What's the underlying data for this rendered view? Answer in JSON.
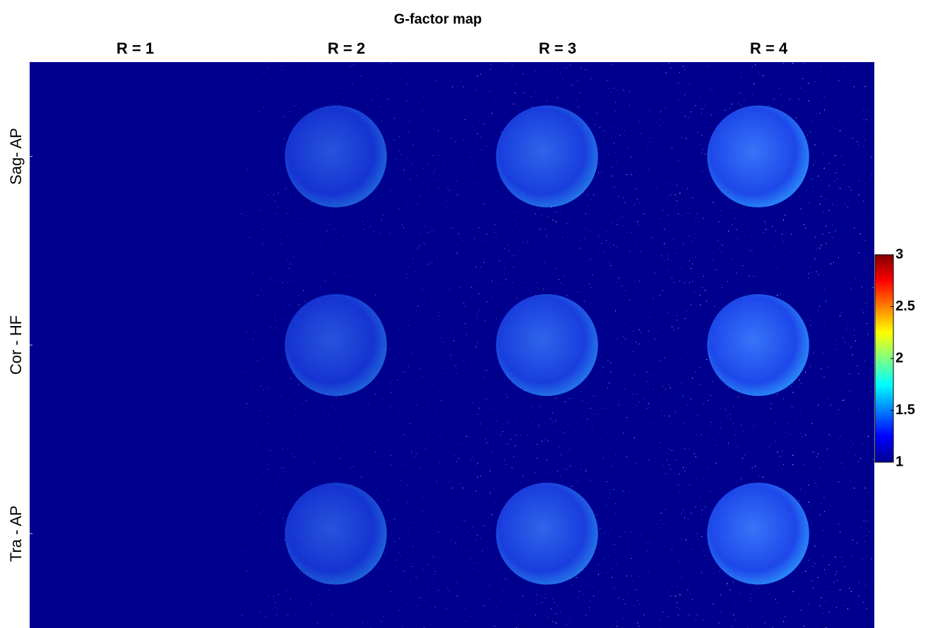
{
  "chart_data": {
    "type": "heatmap",
    "title": "G-factor map",
    "columns": [
      "R = 1",
      "R = 2",
      "R = 3",
      "R = 4"
    ],
    "rows": [
      "Sag- AP",
      "Cor - HF",
      "Tra - AP"
    ],
    "colorbar": {
      "lim": [
        1,
        3
      ],
      "ticks": [
        1,
        1.5,
        2,
        2.5,
        3
      ],
      "colormap": "jet"
    }
  }
}
